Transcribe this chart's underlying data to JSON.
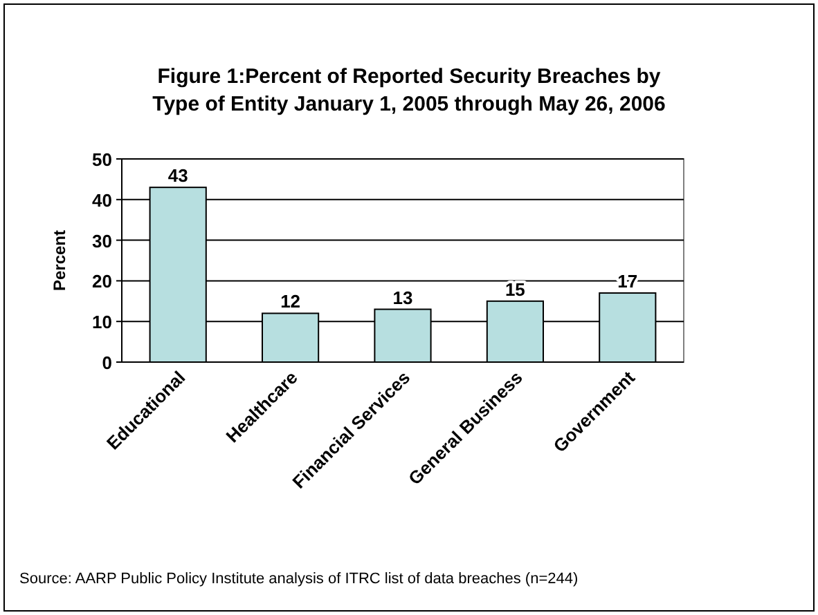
{
  "chart_data": {
    "type": "bar",
    "title": "Figure 1:Percent of Reported Security Breaches by Type of Entity January 1, 2005 through May 26, 2006",
    "ylabel": "Percent",
    "categories": [
      "Educational",
      "Healthcare",
      "Financial Services",
      "General Business",
      "Government"
    ],
    "values": [
      43,
      12,
      13,
      15,
      17
    ],
    "color": "#b7dfe0",
    "ylim": [
      0,
      50
    ],
    "yticks": [
      0,
      10,
      20,
      30,
      40,
      50
    ],
    "grid": "y",
    "data_labels": true,
    "annotations": [
      "Source: AARP Public Policy Institute analysis of ITRC list of data breaches (n=244)"
    ]
  }
}
